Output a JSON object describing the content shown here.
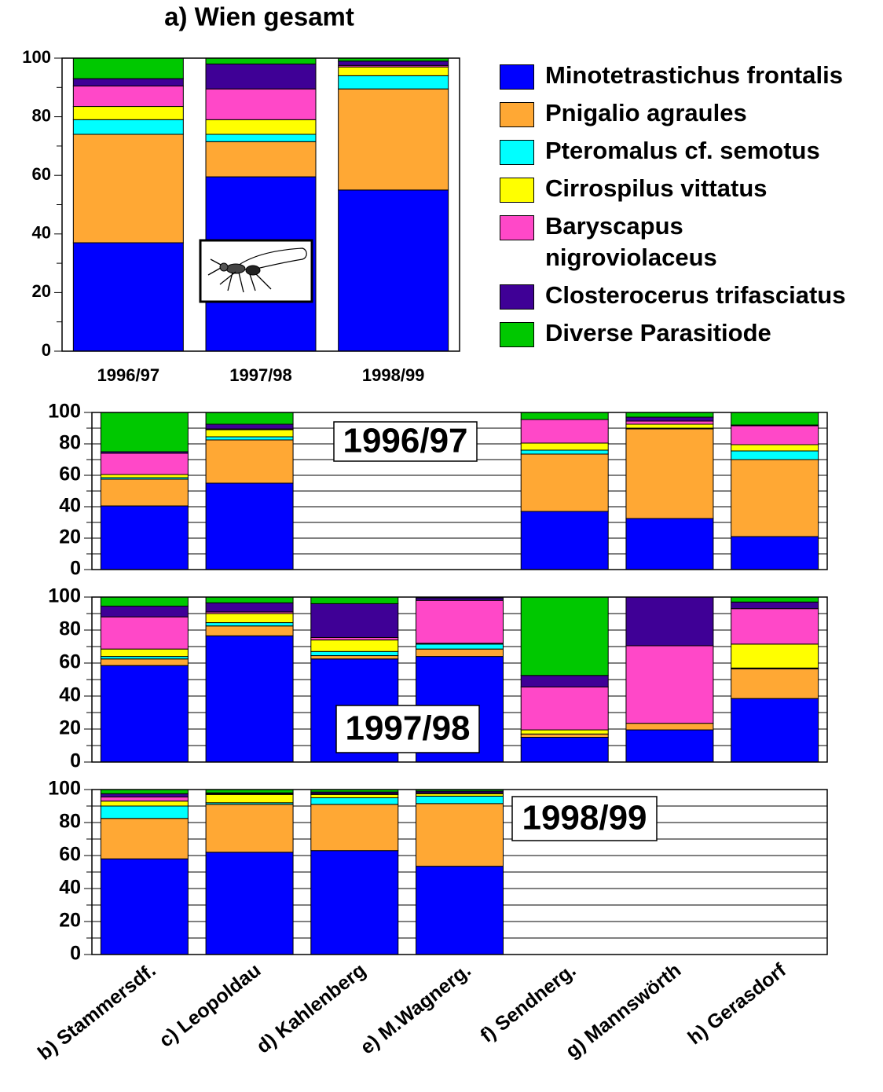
{
  "chart_data": [
    {
      "type": "bar",
      "stacked": true,
      "title": "a) Wien gesamt",
      "categories": [
        "1996/97",
        "1997/98",
        "1998/99"
      ],
      "ylim": [
        0,
        100
      ],
      "yticks": [
        0,
        20,
        40,
        60,
        80,
        100
      ],
      "minor_yticks": [
        10,
        30,
        50,
        70,
        90
      ],
      "grid": false,
      "series": [
        {
          "name": "Minotetrastichus frontalis",
          "color": "#0000ff",
          "values": [
            37,
            59.5,
            55
          ]
        },
        {
          "name": "Pnigalio agraules",
          "color": "#ffa834",
          "values": [
            37,
            12,
            34.5
          ]
        },
        {
          "name": "Pteromalus cf. semotus",
          "color": "#00ffff",
          "values": [
            5,
            2.5,
            4.5
          ]
        },
        {
          "name": "Cirrospilus vittatus",
          "color": "#ffff00",
          "values": [
            4.5,
            5,
            3
          ]
        },
        {
          "name": "Baryscapus nigroviolaceus",
          "color": "#ff48c8",
          "values": [
            7,
            10.5,
            0.5
          ]
        },
        {
          "name": "Closterocerus trifasciatus",
          "color": "#3f0096",
          "values": [
            2.5,
            8.5,
            1.5
          ]
        },
        {
          "name": "Diverse Parasitiode",
          "color": "#00c800",
          "values": [
            7,
            2,
            1
          ]
        }
      ]
    },
    {
      "type": "bar",
      "stacked": true,
      "annotation": "1996/97",
      "ylim": [
        0,
        100
      ],
      "yticks": [
        0,
        20,
        40,
        60,
        80,
        100
      ],
      "minor_yticks": [
        10,
        30,
        50,
        70,
        90
      ],
      "grid": true,
      "series": [
        {
          "color": "#0000ff",
          "values": [
            40.5,
            55,
            null,
            null,
            37,
            32.5,
            21
          ]
        },
        {
          "color": "#ffa834",
          "values": [
            17,
            27.5,
            null,
            null,
            36.5,
            57,
            49
          ]
        },
        {
          "color": "#00ffff",
          "values": [
            1,
            2,
            null,
            null,
            2.5,
            0.5,
            5.5
          ]
        },
        {
          "color": "#ffff00",
          "values": [
            2,
            4.5,
            null,
            null,
            4.5,
            2.5,
            4
          ]
        },
        {
          "color": "#ff48c8",
          "values": [
            13.5,
            0.5,
            null,
            null,
            15,
            2,
            12
          ]
        },
        {
          "color": "#3f0096",
          "values": [
            1,
            3,
            null,
            null,
            0,
            2.5,
            0.5
          ]
        },
        {
          "color": "#00c800",
          "values": [
            25,
            7.5,
            null,
            null,
            4.5,
            3,
            8
          ]
        }
      ]
    },
    {
      "type": "bar",
      "stacked": true,
      "annotation": "1997/98",
      "ylim": [
        0,
        100
      ],
      "yticks": [
        0,
        20,
        40,
        60,
        80,
        100
      ],
      "minor_yticks": [
        10,
        30,
        50,
        70,
        90
      ],
      "grid": true,
      "series": [
        {
          "color": "#0000ff",
          "values": [
            58.5,
            76.5,
            62.5,
            64,
            15,
            19.5,
            38.5
          ]
        },
        {
          "color": "#ffa834",
          "values": [
            4,
            6,
            2,
            4.5,
            2,
            4,
            18
          ]
        },
        {
          "color": "#00ffff",
          "values": [
            1.5,
            2,
            2.5,
            3,
            0,
            0,
            0.5
          ]
        },
        {
          "color": "#ffff00",
          "values": [
            4.5,
            5.5,
            7,
            0.5,
            2.5,
            0,
            14.5
          ]
        },
        {
          "color": "#ff48c8",
          "values": [
            19.5,
            1,
            1.5,
            26,
            26,
            47,
            21.5
          ]
        },
        {
          "color": "#3f0096",
          "values": [
            6.5,
            5.5,
            20.5,
            1.5,
            7,
            29.5,
            4
          ]
        },
        {
          "color": "#00c800",
          "values": [
            5.5,
            3.5,
            4,
            0.5,
            47.5,
            0,
            3
          ]
        }
      ]
    },
    {
      "type": "bar",
      "stacked": true,
      "annotation": "1998/99",
      "categories": [
        "b) Stammersdf.",
        "c) Leopoldau",
        "d) Kahlenberg",
        "e) M.Wagnerg.",
        "f) Sendnerg.",
        "g) Mannswörth",
        "h) Gerasdorf"
      ],
      "ylim": [
        0,
        100
      ],
      "yticks": [
        0,
        20,
        40,
        60,
        80,
        100
      ],
      "minor_yticks": [
        10,
        30,
        50,
        70,
        90
      ],
      "grid": true,
      "series": [
        {
          "color": "#0000ff",
          "values": [
            58,
            62,
            63,
            53.5,
            null,
            null,
            null
          ]
        },
        {
          "color": "#ffa834",
          "values": [
            24.5,
            29,
            28,
            38,
            null,
            null,
            null
          ]
        },
        {
          "color": "#00ffff",
          "values": [
            7.5,
            1,
            4,
            4.5,
            null,
            null,
            null
          ]
        },
        {
          "color": "#ffff00",
          "values": [
            3,
            5,
            2,
            1.5,
            null,
            null,
            null
          ]
        },
        {
          "color": "#ff48c8",
          "values": [
            2.5,
            0.5,
            0.5,
            0.5,
            null,
            null,
            null
          ]
        },
        {
          "color": "#3f0096",
          "values": [
            2,
            0.5,
            1,
            1,
            null,
            null,
            null
          ]
        },
        {
          "color": "#00c800",
          "values": [
            2.5,
            2,
            1.5,
            1,
            null,
            null,
            null
          ]
        }
      ]
    }
  ]
}
